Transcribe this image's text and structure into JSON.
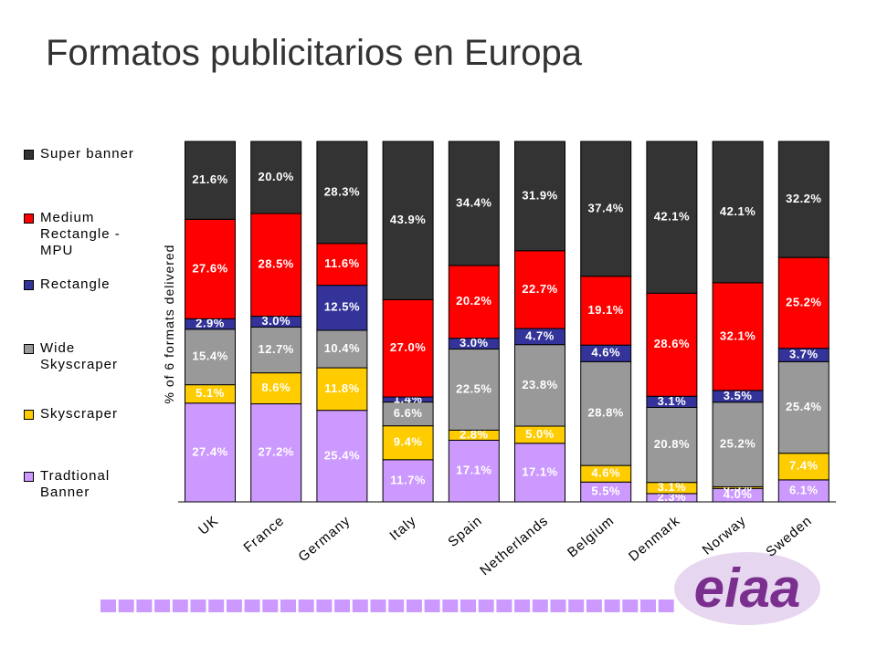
{
  "chart_data": {
    "type": "stacked_bar_percent",
    "title": "Formatos publicitarios en Europa",
    "y_label": "% of 6 formats delivered",
    "logo": "eiaa",
    "categories": [
      "UK",
      "France",
      "Germany",
      "Italy",
      "Spain",
      "Netherlands",
      "Belgium",
      "Denmark",
      "Norway",
      "Sweden"
    ],
    "series": [
      {
        "name": "Tradtional Banner",
        "color": "#cc99ff",
        "values": [
          27.4,
          27.2,
          25.4,
          11.7,
          17.1,
          17.1,
          5.5,
          2.3,
          4.0,
          6.1
        ],
        "value_labels": [
          "27.4%",
          "27.2%",
          "25.4%",
          "11.7%",
          "17.1%",
          "17.1%",
          "5.5%",
          "2.3%",
          "4.0%",
          "6.1%"
        ]
      },
      {
        "name": "Skyscraper",
        "color": "#ffcc00",
        "values": [
          5.1,
          8.6,
          11.8,
          9.4,
          2.8,
          5.0,
          4.6,
          3.1,
          0.5,
          7.4
        ],
        "value_labels": [
          "5.1%",
          "8.6%",
          "11.8%",
          "9.4%",
          "2.8%",
          "5.0%",
          "4.6%",
          "3.1%",
          "0.5%",
          "7.4%"
        ]
      },
      {
        "name": "Wide Skyscraper",
        "color": "#999999",
        "values": [
          15.4,
          12.7,
          10.4,
          6.6,
          22.5,
          23.8,
          28.8,
          20.8,
          25.2,
          25.4
        ],
        "value_labels": [
          "15.4%",
          "12.7%",
          "10.4%",
          "6.6%",
          "22.5%",
          "23.8%",
          "28.8%",
          "20.8%",
          "25.2%",
          "25.4%"
        ]
      },
      {
        "name": "Rectangle",
        "color": "#333399",
        "values": [
          2.9,
          3.0,
          12.5,
          1.4,
          3.0,
          4.7,
          4.6,
          3.1,
          3.5,
          3.7
        ],
        "value_labels": [
          "2.9%",
          "3.0%",
          "12.5%",
          "1.4%",
          "3.0%",
          "4.7%",
          "4.6%",
          "3.1%",
          "3.5%",
          "3.7%"
        ]
      },
      {
        "name": "Medium Rectangle - MPU",
        "color": "#ff0000",
        "values": [
          27.6,
          28.5,
          11.6,
          27.0,
          20.2,
          22.7,
          19.1,
          28.6,
          32.1,
          25.2
        ],
        "value_labels": [
          "27.6%",
          "28.5%",
          "11.6%",
          "27.0%",
          "20.2%",
          "22.7%",
          "19.1%",
          "28.6%",
          "32.1%",
          "25.2%"
        ]
      },
      {
        "name": "Super banner",
        "color": "#333333",
        "values": [
          21.6,
          20.0,
          28.3,
          43.9,
          34.4,
          31.9,
          37.4,
          42.1,
          42.1,
          32.2
        ],
        "value_labels": [
          "21.6%",
          "20.0%",
          "28.3%",
          "43.9%",
          "34.4%",
          "31.9%",
          "37.4%",
          "42.1%",
          "42.1%",
          "32.2%"
        ]
      }
    ]
  }
}
